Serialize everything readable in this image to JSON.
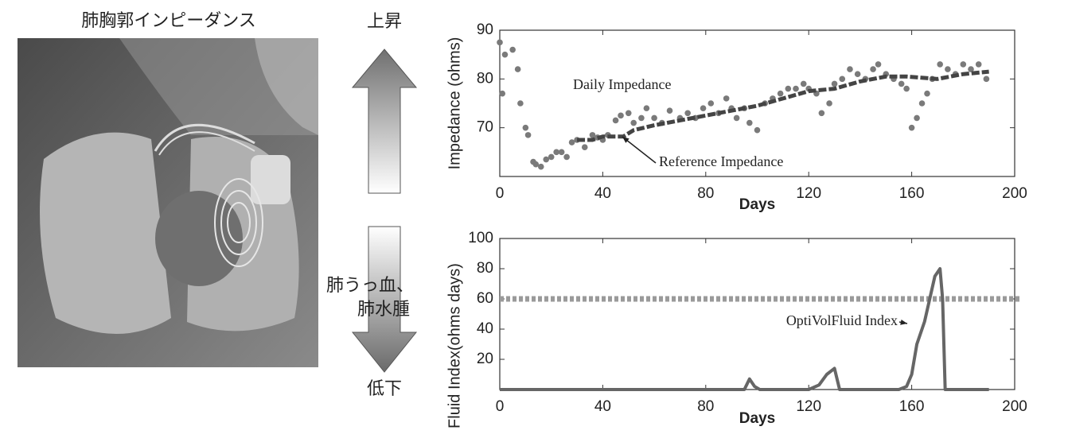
{
  "labels": {
    "title": "肺胸郭インピーダンス",
    "up": "上昇",
    "down": "低下",
    "condition": [
      "肺うっ血、",
      "肺水腫"
    ]
  },
  "chart_data": [
    {
      "type": "line",
      "ylabel": "Impedance (ohms)",
      "xlabel": "Days",
      "xlim": [
        0,
        200
      ],
      "xticks": [
        0,
        40,
        80,
        120,
        160,
        200
      ],
      "ylim": [
        60,
        90
      ],
      "yticks": [
        70,
        80,
        90
      ],
      "series": [
        {
          "name": "Daily Impedance",
          "type": "scatter",
          "color": "#7a7a7a",
          "x": [
            0,
            1,
            2,
            5,
            7,
            8,
            10,
            11,
            13,
            14,
            16,
            18,
            20,
            22,
            24,
            26,
            28,
            30,
            33,
            36,
            38,
            40,
            42,
            45,
            47,
            50,
            52,
            55,
            57,
            60,
            63,
            66,
            70,
            73,
            76,
            79,
            82,
            85,
            88,
            90,
            92,
            95,
            97,
            100,
            103,
            106,
            109,
            112,
            115,
            118,
            120,
            123,
            125,
            128,
            130,
            133,
            136,
            139,
            142,
            145,
            147,
            150,
            153,
            156,
            158,
            160,
            162,
            164,
            166,
            168,
            171,
            174,
            177,
            180,
            183,
            186,
            189
          ],
          "values": [
            87.5,
            77,
            85,
            86,
            82,
            75,
            70,
            68.5,
            63,
            62.5,
            62,
            63.5,
            64,
            65,
            65,
            64,
            67,
            67.5,
            66,
            68.5,
            68,
            67.5,
            68.5,
            71.5,
            72.5,
            73,
            71,
            72,
            74,
            72,
            71,
            73.5,
            72,
            73,
            72,
            74,
            75,
            73,
            76,
            74,
            72,
            74,
            71,
            69.5,
            75,
            76,
            77,
            78,
            78,
            79,
            78,
            77,
            73,
            75,
            79,
            80,
            82,
            81,
            80,
            82,
            83,
            81,
            80,
            79,
            78,
            70,
            72,
            75,
            77,
            80,
            83,
            82,
            81,
            83,
            82,
            83,
            80
          ]
        },
        {
          "name": "Reference Impedance",
          "type": "line",
          "color": "#444444",
          "x": [
            30,
            36,
            40,
            48,
            52,
            60,
            70,
            80,
            90,
            100,
            110,
            120,
            130,
            140,
            150,
            158,
            170,
            180,
            190
          ],
          "values": [
            67.5,
            67.5,
            68.2,
            68.2,
            69.5,
            70.5,
            71.5,
            72.5,
            73.5,
            74.5,
            76,
            77.5,
            78,
            79.5,
            80.5,
            80.5,
            80,
            81,
            81.5
          ]
        }
      ]
    },
    {
      "type": "line",
      "ylabel": "Fluid Index(ohms days)",
      "xlabel": "Days",
      "xlim": [
        0,
        200
      ],
      "xticks": [
        0,
        40,
        80,
        120,
        160,
        200
      ],
      "ylim": [
        0,
        100
      ],
      "yticks": [
        20,
        40,
        60,
        80,
        100
      ],
      "threshold": 60,
      "threshold_color": "#9a9a9a",
      "series": [
        {
          "name": "OptiVolFluid Index",
          "type": "line",
          "color": "#666666",
          "x": [
            0,
            90,
            95,
            97,
            99,
            101,
            120,
            124,
            127,
            130,
            132,
            155,
            158,
            160,
            162,
            165,
            167,
            169,
            171,
            172,
            173,
            190
          ],
          "values": [
            0,
            0,
            0,
            7,
            2,
            0,
            0,
            3,
            10,
            14,
            0,
            0,
            2,
            10,
            30,
            45,
            60,
            75,
            80,
            60,
            0,
            0
          ]
        }
      ]
    }
  ]
}
